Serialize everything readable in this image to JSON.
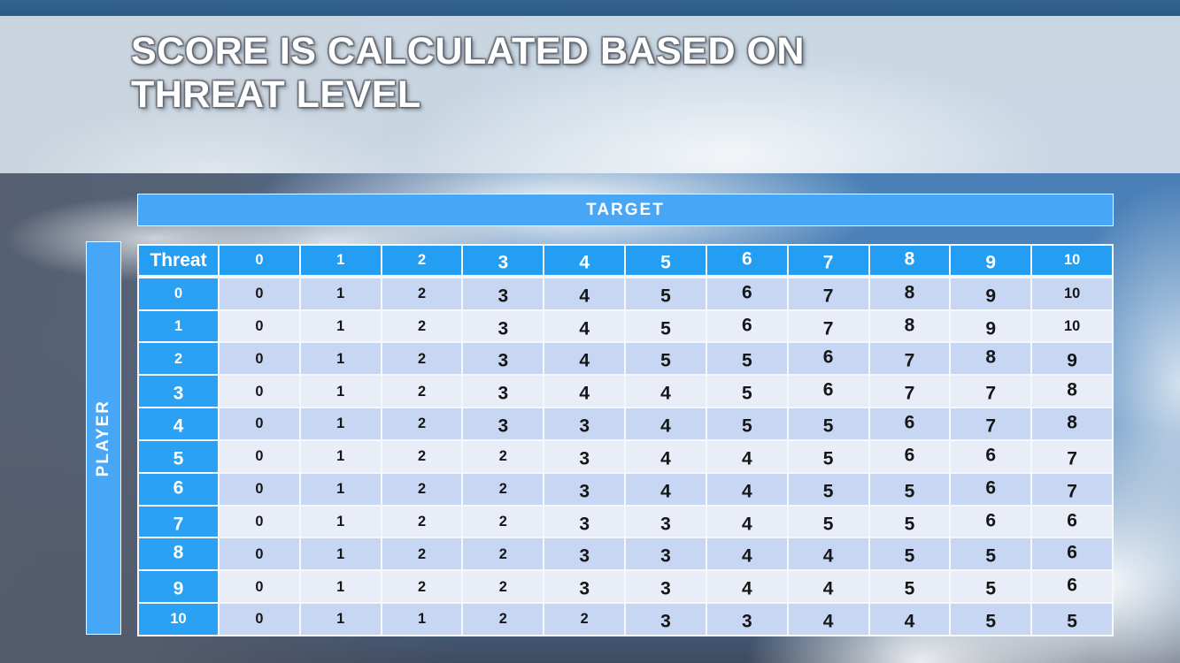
{
  "slide": {
    "title_line1": "SCORE IS CALCULATED BASED ON",
    "title_line2": "THREAT LEVEL"
  },
  "table": {
    "target_label": "TARGET",
    "player_label": "PLAYER",
    "corner_label": "Threat",
    "column_headers": [
      "0",
      "1",
      "2",
      "3",
      "4",
      "5",
      "6",
      "7",
      "8",
      "9",
      "10"
    ],
    "rows": [
      {
        "threat": "0",
        "values": [
          "0",
          "1",
          "2",
          "3",
          "4",
          "5",
          "6",
          "7",
          "8",
          "9",
          "10"
        ]
      },
      {
        "threat": "1",
        "values": [
          "0",
          "1",
          "2",
          "3",
          "4",
          "5",
          "6",
          "7",
          "8",
          "9",
          "10"
        ]
      },
      {
        "threat": "2",
        "values": [
          "0",
          "1",
          "2",
          "3",
          "4",
          "5",
          "5",
          "6",
          "7",
          "8",
          "9"
        ]
      },
      {
        "threat": "3",
        "values": [
          "0",
          "1",
          "2",
          "3",
          "4",
          "4",
          "5",
          "6",
          "7",
          "7",
          "8"
        ]
      },
      {
        "threat": "4",
        "values": [
          "0",
          "1",
          "2",
          "3",
          "3",
          "4",
          "5",
          "5",
          "6",
          "7",
          "8"
        ]
      },
      {
        "threat": "5",
        "values": [
          "0",
          "1",
          "2",
          "2",
          "3",
          "4",
          "4",
          "5",
          "6",
          "6",
          "7"
        ]
      },
      {
        "threat": "6",
        "values": [
          "0",
          "1",
          "2",
          "2",
          "3",
          "4",
          "4",
          "5",
          "5",
          "6",
          "7"
        ]
      },
      {
        "threat": "7",
        "values": [
          "0",
          "1",
          "2",
          "2",
          "3",
          "3",
          "4",
          "5",
          "5",
          "6",
          "6"
        ]
      },
      {
        "threat": "8",
        "values": [
          "0",
          "1",
          "2",
          "2",
          "3",
          "3",
          "4",
          "4",
          "5",
          "5",
          "6"
        ]
      },
      {
        "threat": "9",
        "values": [
          "0",
          "1",
          "2",
          "2",
          "3",
          "3",
          "4",
          "4",
          "5",
          "5",
          "6"
        ]
      },
      {
        "threat": "10",
        "values": [
          "0",
          "1",
          "1",
          "2",
          "2",
          "3",
          "3",
          "4",
          "4",
          "5",
          "5"
        ]
      }
    ]
  },
  "colors": {
    "top_bar": "#2e5d8a",
    "title_band": "#d3dee7",
    "bar_blue": "#47a6f5",
    "header_blue": "#249ef3",
    "row_label_blue": "#2ba1f4",
    "row_even": "#c7d7f3",
    "row_odd": "#e9edf8",
    "sky": "#4a80b7",
    "storm_cloud": "#565e6e",
    "cell_text": "#161616"
  }
}
